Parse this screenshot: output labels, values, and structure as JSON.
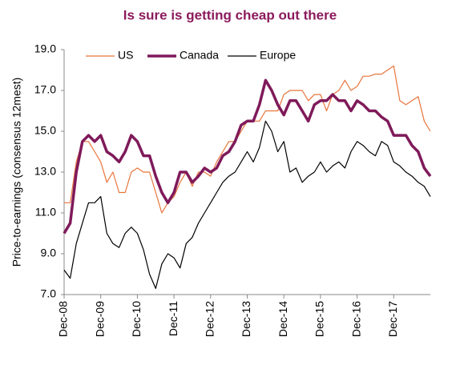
{
  "chart_data": {
    "type": "line",
    "title": "Is sure  is getting cheap out there",
    "y_label": "Price-to-earnings (consensus 12mest)",
    "categories": [
      "Dec-08",
      null,
      null,
      null,
      null,
      null,
      "Dec-09",
      null,
      null,
      null,
      null,
      null,
      "Dec-10",
      null,
      null,
      null,
      null,
      null,
      "Dec-11",
      null,
      null,
      null,
      null,
      null,
      "Dec-12",
      null,
      null,
      null,
      null,
      null,
      "Dec-13",
      null,
      null,
      null,
      null,
      null,
      "Dec-14",
      null,
      null,
      null,
      null,
      null,
      "Dec-15",
      null,
      null,
      null,
      null,
      null,
      "Dec-16",
      null,
      null,
      null,
      null,
      null,
      "Dec-17",
      null,
      null,
      null,
      null,
      null,
      null
    ],
    "series": [
      {
        "name": "US",
        "color": "#e8743b",
        "width": 1.2,
        "values": [
          11.5,
          11.5,
          13.5,
          14.5,
          14.5,
          14,
          13.5,
          12.5,
          13,
          12,
          12,
          13,
          13.2,
          13,
          13,
          12,
          11,
          11.5,
          11.8,
          12.5,
          13,
          12.3,
          13,
          13,
          12.8,
          13.5,
          14,
          14.5,
          14.5,
          15,
          15.5,
          15.5,
          15.5,
          16,
          16,
          16,
          16.8,
          17,
          17,
          17,
          16.5,
          16.8,
          16.8,
          16,
          16.8,
          17,
          17.5,
          17,
          17.2,
          17.7,
          17.7,
          17.8,
          17.8,
          18,
          18.2,
          16.5,
          16.3,
          16.5,
          16.7,
          15.5,
          15
        ]
      },
      {
        "name": "Canada",
        "color": "#7f1a5a",
        "width": 3.5,
        "values": [
          10,
          10.5,
          13,
          14.5,
          14.8,
          14.5,
          14.8,
          14,
          13.8,
          13.5,
          14,
          14.8,
          14.5,
          13.8,
          13.8,
          12.8,
          12,
          11.5,
          12,
          13,
          13,
          12.5,
          12.8,
          13.2,
          13,
          13.2,
          13.8,
          14,
          14.5,
          15.3,
          15.5,
          15.5,
          16.3,
          17.5,
          17,
          16.3,
          15.8,
          16.5,
          16.5,
          16,
          15.5,
          16.3,
          16.5,
          16.5,
          16.8,
          16.5,
          16.5,
          16,
          16.5,
          16.3,
          16,
          16,
          15.7,
          15.5,
          14.8,
          14.8,
          14.8,
          14.3,
          14,
          13.2,
          12.8
        ]
      },
      {
        "name": "Europe",
        "color": "#000000",
        "width": 1.2,
        "values": [
          8.2,
          7.8,
          9.5,
          10.5,
          11.5,
          11.5,
          11.8,
          10,
          9.5,
          9.3,
          10,
          10.3,
          10,
          9.2,
          8,
          7.3,
          8.5,
          9,
          8.8,
          8.3,
          9.5,
          9.8,
          10.5,
          11,
          11.5,
          12,
          12.5,
          12.8,
          13,
          13.5,
          14,
          13.5,
          14.2,
          15.5,
          15,
          14,
          14.5,
          13,
          13.2,
          12.5,
          12.8,
          13,
          13.5,
          13,
          13.3,
          13.5,
          13.2,
          14,
          14.5,
          14.3,
          14,
          13.8,
          14.5,
          14.3,
          13.5,
          13.3,
          13,
          12.8,
          12.5,
          12.3,
          11.8
        ]
      }
    ],
    "ylim": [
      7,
      19
    ],
    "yticks": [
      {
        "value": 7,
        "label": "7.0"
      },
      {
        "value": 9,
        "label": "9.0"
      },
      {
        "value": 11,
        "label": "11.0"
      },
      {
        "value": 13,
        "label": "13.0"
      },
      {
        "value": 15,
        "label": "15.0"
      },
      {
        "value": 17,
        "label": "17.0"
      },
      {
        "value": 19,
        "label": "19.0"
      }
    ],
    "grid": false,
    "legend": "top"
  }
}
